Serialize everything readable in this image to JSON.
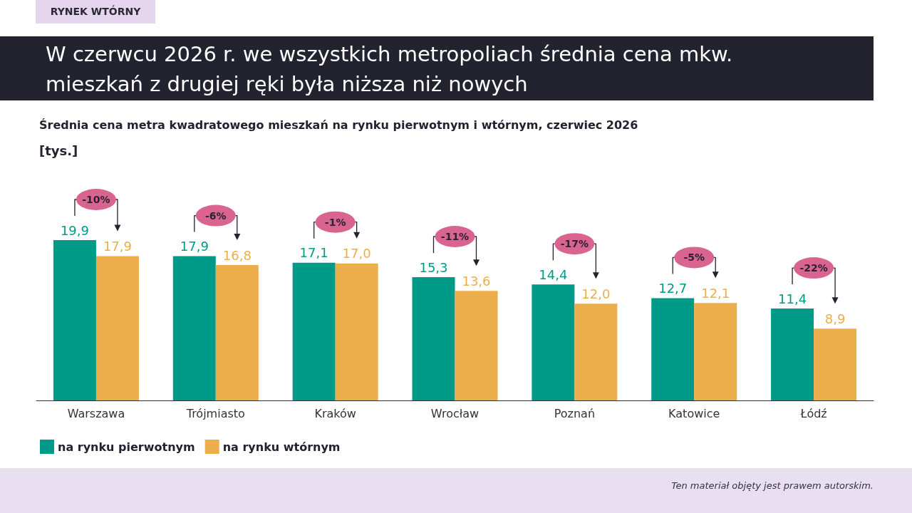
{
  "chart_data": {
    "type": "bar",
    "title": "W czerwcu 2026 r. we wszystkich metropoliach średnia cena mkw. mieszkań z drugiej ręki była niższa niż nowych",
    "subtitle": "Średnia cena metra kwadratowego mieszkań na rynku pierwotnym i wtórnym, czerwiec 2026",
    "categories": [
      "Warszawa",
      "Trójmiasto",
      "Kraków",
      "Wrocław",
      "Poznań",
      "Katowice",
      "Łódź"
    ],
    "series": [
      {
        "name": "na rynku pierwotnym",
        "color": "#009a88",
        "values": [
          19.9,
          17.9,
          17.1,
          15.3,
          14.4,
          12.7,
          11.4
        ],
        "value_labels": [
          "19,9",
          "17,9",
          "17,1",
          "15,3",
          "14,4",
          "12,7",
          "11,4"
        ]
      },
      {
        "name": "na rynku wtórnym",
        "color": "#ecae4b",
        "values": [
          17.9,
          16.8,
          17.0,
          13.6,
          12.0,
          12.1,
          8.9
        ],
        "value_labels": [
          "17,9",
          "16,8",
          "17,0",
          "13,6",
          "12,0",
          "12,1",
          "8,9"
        ]
      }
    ],
    "annotations": [
      "RYNEK WTÓRNY",
      "[tys.]",
      "-10%",
      "-6%",
      "-1%",
      "-11%",
      "-17%",
      "-5%",
      "-22%",
      "Ten materiał objęty jest prawem autorskim."
    ],
    "legend": "bottom left"
  }
}
